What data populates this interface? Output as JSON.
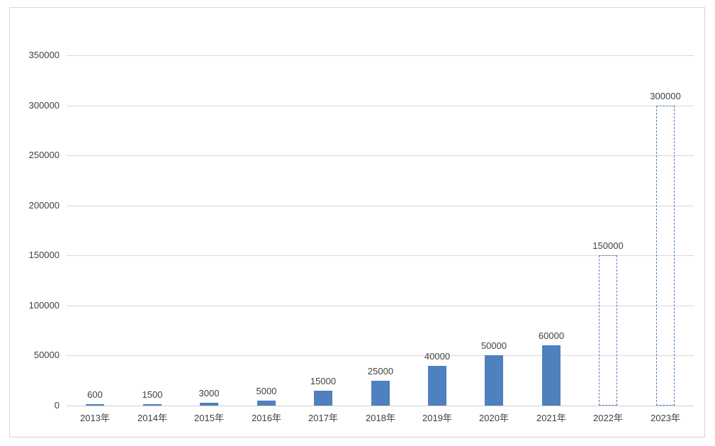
{
  "chart_data": {
    "type": "bar",
    "title": "",
    "xlabel": "",
    "ylabel": "",
    "categories": [
      "2013年",
      "2014年",
      "2015年",
      "2016年",
      "2017年",
      "2018年",
      "2019年",
      "2020年",
      "2021年",
      "2022年",
      "2023年"
    ],
    "values": [
      600,
      1500,
      3000,
      5000,
      15000,
      25000,
      40000,
      50000,
      60000,
      150000,
      300000
    ],
    "forecast": [
      false,
      false,
      false,
      false,
      false,
      false,
      false,
      false,
      false,
      true,
      true
    ],
    "data_labels": [
      "600",
      "1500",
      "3000",
      "5000",
      "15000",
      "25000",
      "40000",
      "50000",
      "60000",
      "150000",
      "300000"
    ],
    "y_ticks": [
      0,
      50000,
      100000,
      150000,
      200000,
      250000,
      300000,
      350000
    ],
    "y_tick_labels": [
      "0",
      "50000",
      "100000",
      "150000",
      "200000",
      "250000",
      "300000",
      "350000"
    ],
    "ylim": [
      0,
      350000
    ],
    "grid": true,
    "legend": "none",
    "colors": {
      "bar_fill": "#4e81bd",
      "forecast_border": "#4f81bd",
      "gridline": "#d9d9d9",
      "axis_line": "#cfcfcf",
      "label_text": "#404040",
      "frame_border": "#d6d6d6",
      "background": "#ffffff"
    }
  }
}
